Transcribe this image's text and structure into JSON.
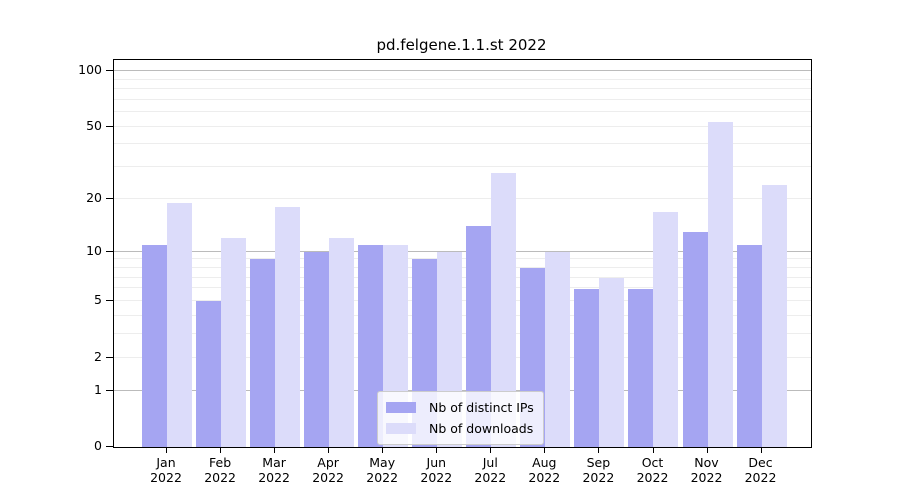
{
  "chart_data": {
    "type": "bar",
    "title": "pd.felgene.1.1.st 2022",
    "categories": [
      "Jan 2022",
      "Feb 2022",
      "Mar 2022",
      "Apr 2022",
      "May 2022",
      "Jun 2022",
      "Jul 2022",
      "Aug 2022",
      "Sep 2022",
      "Oct 2022",
      "Nov 2022",
      "Dec 2022"
    ],
    "series": [
      {
        "name": "Nb of distinct IPs",
        "color": "#a5a5f2",
        "values": [
          11,
          5,
          9,
          10,
          11,
          9,
          14,
          8,
          6,
          6,
          13,
          11
        ]
      },
      {
        "name": "Nb of downloads",
        "color": "#dcdcfa",
        "values": [
          19,
          12,
          18,
          12,
          11,
          10,
          28,
          10,
          7,
          17,
          53,
          24
        ]
      }
    ],
    "xlabel": "",
    "ylabel": "",
    "yscale": "log1p",
    "ylim": [
      0,
      100
    ],
    "yticks_labeled": [
      0,
      1,
      2,
      5,
      10,
      20,
      50,
      100
    ],
    "yticks_major_grid": [
      1,
      10,
      100
    ],
    "yticks_minor_grid": [
      2,
      3,
      4,
      5,
      6,
      7,
      8,
      9,
      20,
      30,
      40,
      50,
      60,
      70,
      80,
      90
    ],
    "grid": true,
    "legend_position": "inside-bottom-center"
  },
  "colors": {
    "background": "#ffffff",
    "axis": "#000000",
    "major_grid": "#bbbbbb",
    "minor_grid": "#ededed",
    "legend_border": "#cccccc"
  }
}
